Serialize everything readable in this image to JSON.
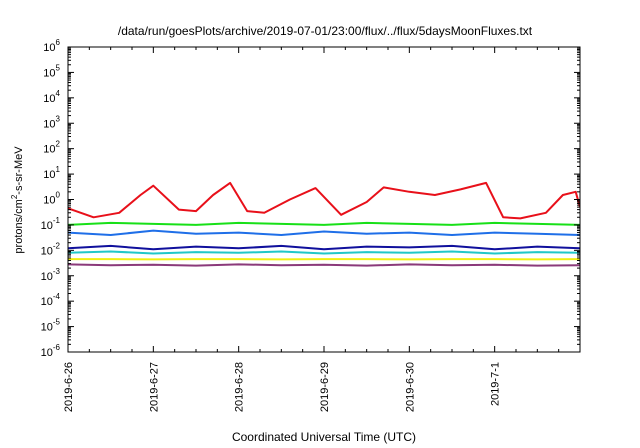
{
  "chart_data": {
    "type": "line",
    "title": "/data/run/goesPlots/archive/2019-07-01/23:00/flux/../flux/5daysMoonFluxes.txt",
    "xlabel": "Coordinated Universal Time (UTC)",
    "ylabel_base": "protons/cm",
    "ylabel_sup": "2",
    "ylabel_rest": "-s-sr-MeV",
    "yscale": "log",
    "ylim": [
      1e-06,
      1000000.0
    ],
    "y_ticks": [
      {
        "base": "10",
        "exp": "-6",
        "value": 1e-06
      },
      {
        "base": "10",
        "exp": "-5",
        "value": 1e-05
      },
      {
        "base": "10",
        "exp": "-4",
        "value": 0.0001
      },
      {
        "base": "10",
        "exp": "-3",
        "value": 0.001
      },
      {
        "base": "10",
        "exp": "-2",
        "value": 0.01
      },
      {
        "base": "10",
        "exp": "-1",
        "value": 0.1
      },
      {
        "base": "10",
        "exp": "0",
        "value": 1
      },
      {
        "base": "10",
        "exp": "1",
        "value": 10
      },
      {
        "base": "10",
        "exp": "2",
        "value": 100
      },
      {
        "base": "10",
        "exp": "3",
        "value": 1000
      },
      {
        "base": "10",
        "exp": "4",
        "value": 10000
      },
      {
        "base": "10",
        "exp": "5",
        "value": 100000
      },
      {
        "base": "10",
        "exp": "6",
        "value": 1000000
      }
    ],
    "x_ticks": [
      "2019-6-26",
      "2019-6-27",
      "2019-6-28",
      "2019-6-29",
      "2019-6-30",
      "2019-7-1"
    ],
    "xlim_days": [
      0,
      6
    ],
    "grid": false,
    "series": [
      {
        "color": "#e8101a",
        "x": [
          0.0,
          0.3,
          0.6,
          0.85,
          1.0,
          1.3,
          1.5,
          1.7,
          1.9,
          2.1,
          2.3,
          2.6,
          2.9,
          3.2,
          3.5,
          3.7,
          4.0,
          4.3,
          4.6,
          4.9,
          5.1,
          5.3,
          5.6,
          5.8,
          5.95,
          6.0
        ],
        "y": [
          0.45,
          0.2,
          0.3,
          1.5,
          3.5,
          0.4,
          0.35,
          1.5,
          4.5,
          0.35,
          0.3,
          1.0,
          2.8,
          0.25,
          0.8,
          3.0,
          2.0,
          1.5,
          2.5,
          4.5,
          0.2,
          0.18,
          0.3,
          1.5,
          2.0,
          0.5
        ]
      },
      {
        "color": "#18e018",
        "x": [
          0.0,
          0.5,
          1.0,
          1.5,
          2.0,
          2.5,
          3.0,
          3.5,
          4.0,
          4.5,
          5.0,
          5.5,
          6.0
        ],
        "y": [
          0.1,
          0.12,
          0.11,
          0.1,
          0.12,
          0.11,
          0.1,
          0.12,
          0.11,
          0.1,
          0.12,
          0.11,
          0.1
        ]
      },
      {
        "color": "#1f6fe8",
        "x": [
          0.0,
          0.5,
          1.0,
          1.5,
          2.0,
          2.5,
          3.0,
          3.5,
          4.0,
          4.5,
          5.0,
          5.5,
          6.0
        ],
        "y": [
          0.05,
          0.04,
          0.06,
          0.045,
          0.05,
          0.04,
          0.055,
          0.045,
          0.05,
          0.04,
          0.05,
          0.045,
          0.04
        ]
      },
      {
        "color": "#10109c",
        "x": [
          0.0,
          0.5,
          1.0,
          1.5,
          2.0,
          2.5,
          3.0,
          3.5,
          4.0,
          4.5,
          5.0,
          5.5,
          6.0
        ],
        "y": [
          0.012,
          0.015,
          0.011,
          0.014,
          0.012,
          0.015,
          0.011,
          0.014,
          0.013,
          0.015,
          0.011,
          0.014,
          0.012
        ]
      },
      {
        "color": "#20c8c8",
        "x": [
          0.0,
          0.5,
          1.0,
          1.5,
          2.0,
          2.5,
          3.0,
          3.5,
          4.0,
          4.5,
          5.0,
          5.5,
          6.0
        ],
        "y": [
          0.008,
          0.009,
          0.0075,
          0.0085,
          0.008,
          0.009,
          0.0075,
          0.0085,
          0.008,
          0.009,
          0.0075,
          0.0085,
          0.008
        ]
      },
      {
        "color": "#f0f010",
        "x": [
          0.0,
          0.5,
          1.0,
          1.5,
          2.0,
          2.5,
          3.0,
          3.5,
          4.0,
          4.5,
          5.0,
          5.5,
          6.0
        ],
        "y": [
          0.0045,
          0.0045,
          0.0044,
          0.0045,
          0.0045,
          0.0044,
          0.0045,
          0.0045,
          0.0044,
          0.0045,
          0.0045,
          0.0044,
          0.0045
        ]
      },
      {
        "color": "#8b3a7a",
        "x": [
          0.0,
          0.5,
          1.0,
          1.5,
          2.0,
          2.5,
          3.0,
          3.5,
          4.0,
          4.5,
          5.0,
          5.5,
          6.0
        ],
        "y": [
          0.0028,
          0.0026,
          0.0027,
          0.0025,
          0.0028,
          0.0026,
          0.0027,
          0.0025,
          0.0028,
          0.0026,
          0.0027,
          0.0025,
          0.0026
        ]
      }
    ]
  }
}
